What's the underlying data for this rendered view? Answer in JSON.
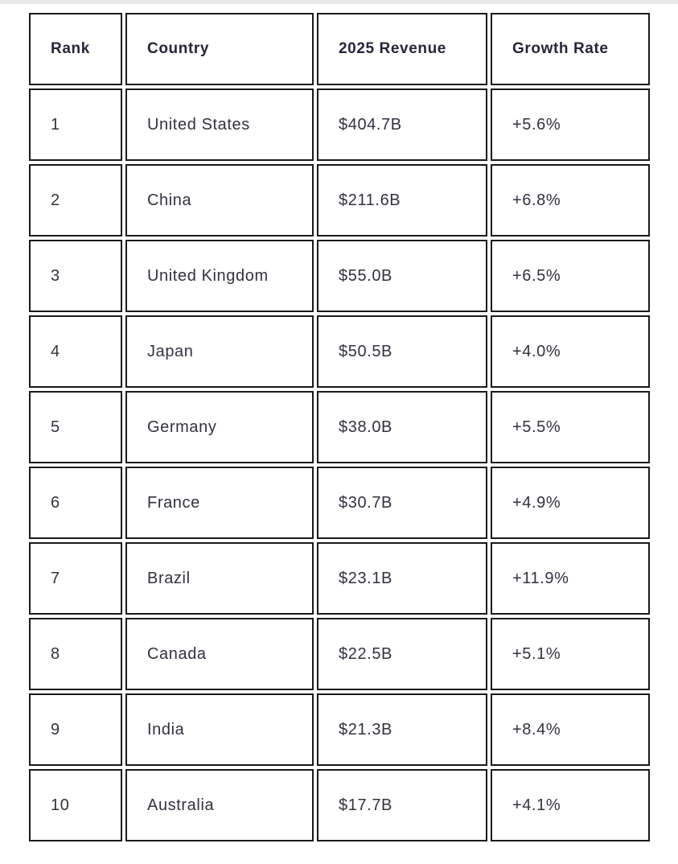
{
  "page": {
    "background_color": "#ffffff",
    "top_strip_color": "#e8e8e8"
  },
  "colors": {
    "cell_border": "#1a1a1a",
    "header_text": "#26263a",
    "body_text": "#32323f",
    "cell_background": "#ffffff"
  },
  "chart_data": {
    "type": "table",
    "title": "",
    "columns": [
      "Rank",
      "Country",
      "2025 Revenue",
      "Growth Rate"
    ],
    "rows": [
      [
        "1",
        "United States",
        "$404.7B",
        "+5.6%"
      ],
      [
        "2",
        "China",
        "$211.6B",
        "+6.8%"
      ],
      [
        "3",
        "United Kingdom",
        "$55.0B",
        "+6.5%"
      ],
      [
        "4",
        "Japan",
        "$50.5B",
        "+4.0%"
      ],
      [
        "5",
        "Germany",
        "$38.0B",
        "+5.5%"
      ],
      [
        "6",
        "France",
        "$30.7B",
        "+4.9%"
      ],
      [
        "7",
        "Brazil",
        "$23.1B",
        "+11.9%"
      ],
      [
        "8",
        "Canada",
        "$22.5B",
        "+5.1%"
      ],
      [
        "9",
        "India",
        "$21.3B",
        "+8.4%"
      ],
      [
        "10",
        "Australia",
        "$17.7B",
        "+4.1%"
      ]
    ]
  }
}
